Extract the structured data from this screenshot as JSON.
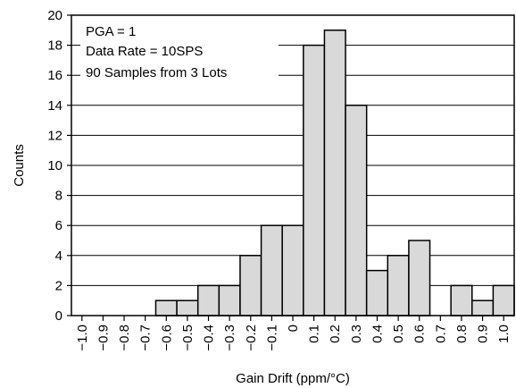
{
  "chart_data": {
    "type": "bar",
    "title": "",
    "xlabel": "Gain Drift (ppm/°C)",
    "ylabel": "Counts",
    "ylim": [
      0,
      20
    ],
    "yticks": [
      0,
      2,
      4,
      6,
      8,
      10,
      12,
      14,
      16,
      18,
      20
    ],
    "xticks": [
      "-1.0",
      "-0.9",
      "-0.8",
      "-0.7",
      "-0.6",
      "-0.5",
      "-0.4",
      "-0.3",
      "-0.2",
      "-0.1",
      "0",
      "0.1",
      "0.2",
      "0.3",
      "0.4",
      "0.5",
      "0.6",
      "0.7",
      "0.8",
      "0.9",
      "1.0"
    ],
    "values": [
      0,
      0,
      0,
      0,
      1,
      1,
      2,
      2,
      4,
      6,
      6,
      18,
      19,
      14,
      3,
      4,
      5,
      0,
      2,
      1,
      2
    ],
    "grid": "horizontal",
    "bar_color": "#d9d9d9",
    "annotations": [
      "PGA = 1",
      "Data Rate = 10SPS",
      "90 Samples from 3 Lots"
    ]
  }
}
